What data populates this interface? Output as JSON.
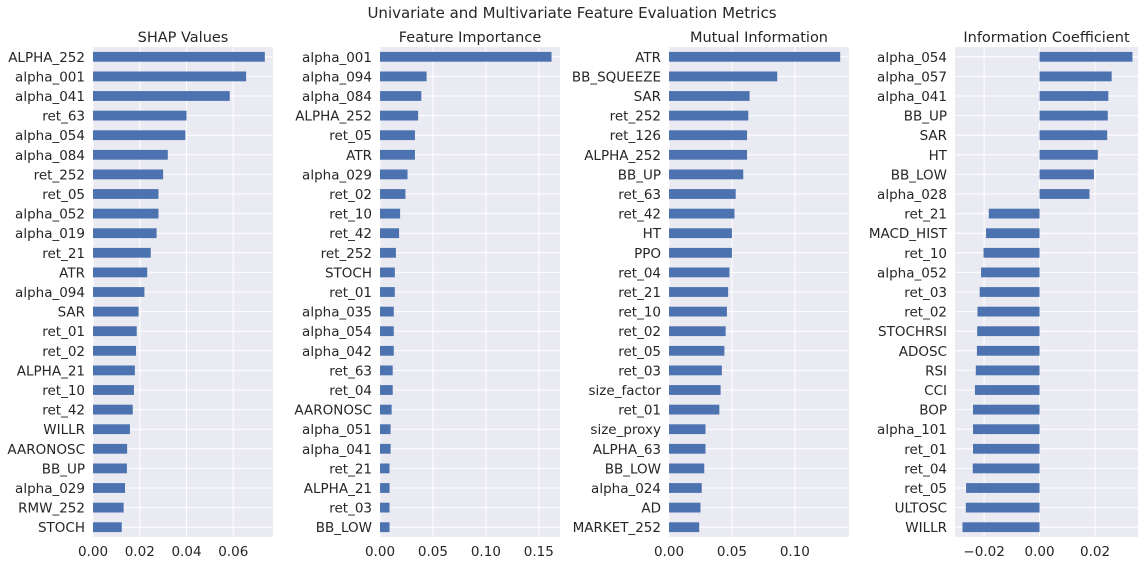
{
  "figure": {
    "title": "Univariate and Multivariate Feature Evaluation Metrics"
  },
  "style": {
    "bar_color": "#4c72b0",
    "panel_background": "#eaeaf2",
    "grid_color": "#ffffff",
    "text_color": "#262626"
  },
  "chart_data": [
    {
      "type": "bar",
      "orientation": "horizontal",
      "title": "SHAP Values",
      "xlabel": "",
      "ylabel": "",
      "xlim": [
        0.0,
        0.077
      ],
      "xticks": [
        0.0,
        0.02,
        0.04,
        0.06
      ],
      "xtick_labels": [
        "0.00",
        "0.02",
        "0.04",
        "0.06"
      ],
      "grid": true,
      "categories": [
        "ALPHA_252",
        "alpha_001",
        "alpha_041",
        "ret_63",
        "alpha_054",
        "alpha_084",
        "ret_252",
        "ret_05",
        "alpha_052",
        "alpha_019",
        "ret_21",
        "ATR",
        "alpha_094",
        "SAR",
        "ret_01",
        "ret_02",
        "ALPHA_21",
        "ret_10",
        "ret_42",
        "WILLR",
        "AARONOSC",
        "BB_UP",
        "alpha_029",
        "RMW_252",
        "STOCH"
      ],
      "values": [
        0.0735,
        0.0655,
        0.0585,
        0.04,
        0.0395,
        0.032,
        0.03,
        0.028,
        0.028,
        0.0272,
        0.0247,
        0.0232,
        0.022,
        0.0195,
        0.0187,
        0.0184,
        0.0179,
        0.0175,
        0.017,
        0.0158,
        0.0146,
        0.0145,
        0.0137,
        0.0131,
        0.0123
      ]
    },
    {
      "type": "bar",
      "orientation": "horizontal",
      "title": "Feature Importance",
      "xlabel": "",
      "ylabel": "",
      "xlim": [
        0.0,
        0.17
      ],
      "xticks": [
        0.0,
        0.05,
        0.1,
        0.15
      ],
      "xtick_labels": [
        "0.00",
        "0.05",
        "0.10",
        "0.15"
      ],
      "grid": true,
      "categories": [
        "alpha_001",
        "alpha_094",
        "alpha_084",
        "ALPHA_252",
        "ret_05",
        "ATR",
        "alpha_029",
        "ret_02",
        "ret_10",
        "ret_42",
        "ret_252",
        "STOCH",
        "ret_01",
        "alpha_035",
        "alpha_054",
        "alpha_042",
        "ret_63",
        "ret_04",
        "AARONOSC",
        "alpha_051",
        "alpha_041",
        "ret_21",
        "ALPHA_21",
        "ret_03",
        "BB_LOW"
      ],
      "values": [
        0.162,
        0.044,
        0.039,
        0.036,
        0.033,
        0.033,
        0.026,
        0.024,
        0.019,
        0.018,
        0.015,
        0.014,
        0.014,
        0.013,
        0.013,
        0.013,
        0.012,
        0.012,
        0.011,
        0.01,
        0.01,
        0.009,
        0.009,
        0.009,
        0.009
      ]
    },
    {
      "type": "bar",
      "orientation": "horizontal",
      "title": "Mutual Information",
      "xlabel": "",
      "ylabel": "",
      "xlim": [
        0.0,
        0.143
      ],
      "xticks": [
        0.0,
        0.05,
        0.1
      ],
      "xtick_labels": [
        "0.00",
        "0.05",
        "0.10"
      ],
      "grid": true,
      "categories": [
        "ATR",
        "BB_SQUEEZE",
        "SAR",
        "ret_252",
        "ret_126",
        "ALPHA_252",
        "BB_UP",
        "ret_63",
        "ret_42",
        "HT",
        "PPO",
        "ret_04",
        "ret_21",
        "ret_10",
        "ret_02",
        "ret_05",
        "ret_03",
        "size_factor",
        "ret_01",
        "size_proxy",
        "ALPHA_63",
        "BB_LOW",
        "alpha_024",
        "AD",
        "MARKET_252"
      ],
      "values": [
        0.136,
        0.086,
        0.064,
        0.063,
        0.062,
        0.062,
        0.059,
        0.053,
        0.052,
        0.05,
        0.05,
        0.048,
        0.047,
        0.046,
        0.045,
        0.044,
        0.042,
        0.041,
        0.04,
        0.029,
        0.029,
        0.028,
        0.026,
        0.025,
        0.024
      ]
    },
    {
      "type": "bar",
      "orientation": "horizontal",
      "title": "Information Coefficient",
      "xlabel": "",
      "ylabel": "",
      "xlim": [
        -0.0305,
        0.0355
      ],
      "xticks": [
        -0.02,
        0.0,
        0.02
      ],
      "xtick_labels": [
        "−0.02",
        "0.00",
        "0.02"
      ],
      "grid": true,
      "categories": [
        "alpha_054",
        "alpha_057",
        "alpha_041",
        "BB_UP",
        "SAR",
        "HT",
        "BB_LOW",
        "alpha_028",
        "ret_21",
        "MACD_HIST",
        "ret_10",
        "alpha_052",
        "ret_03",
        "ret_02",
        "STOCHRSI",
        "ADOSC",
        "RSI",
        "CCI",
        "BOP",
        "alpha_101",
        "ret_01",
        "ret_04",
        "ret_05",
        "ULTOSC",
        "WILLR"
      ],
      "values": [
        0.0335,
        0.026,
        0.0248,
        0.0246,
        0.0244,
        0.021,
        0.0196,
        0.018,
        -0.0183,
        -0.0193,
        -0.0202,
        -0.0211,
        -0.0216,
        -0.0224,
        -0.0225,
        -0.0226,
        -0.023,
        -0.0233,
        -0.024,
        -0.024,
        -0.024,
        -0.0241,
        -0.0265,
        -0.0266,
        -0.0278
      ]
    }
  ]
}
